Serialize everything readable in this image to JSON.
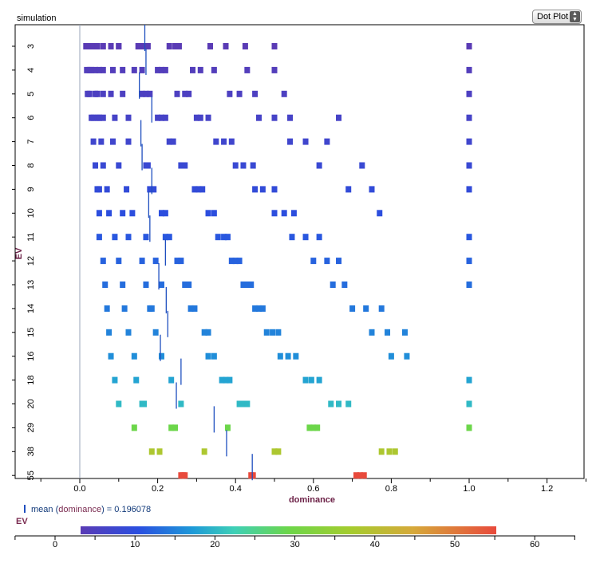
{
  "window": {
    "title": "simulation",
    "plot_type_select": {
      "selected": "Dot Plot"
    }
  },
  "legend": {
    "mean_prefix": "mean (",
    "mean_var": "dominance",
    "mean_suffix": ") = 0.196078",
    "color_label": "EV"
  },
  "colors": {
    "axis_label": "#6b2046",
    "mean_line": "#1f4fbf"
  },
  "chart_data": {
    "type": "scatter",
    "xlabel": "dominance",
    "ylabel": "EV",
    "xlim": [
      -0.1,
      1.3
    ],
    "xticks": [
      -0.1,
      0.0,
      0.1,
      0.2,
      0.3,
      0.4,
      0.5,
      0.6,
      0.7,
      0.8,
      0.9,
      1.0,
      1.1,
      1.2,
      1.3
    ],
    "xtick_labels": [
      "",
      "0.0",
      "",
      "0.2",
      "",
      "0.4",
      "",
      "0.6",
      "",
      "0.8",
      "",
      "1.0",
      "",
      "1.2",
      ""
    ],
    "categories": [
      "3",
      "4",
      "5",
      "6",
      "7",
      "8",
      "9",
      "10",
      "11",
      "12",
      "13",
      "14",
      "15",
      "16",
      "18",
      "20",
      "29",
      "38",
      "55"
    ],
    "category_values": [
      3,
      4,
      5,
      6,
      7,
      8,
      9,
      10,
      11,
      12,
      13,
      14,
      15,
      16,
      18,
      20,
      29,
      38,
      55
    ],
    "overall_mean": 0.196078,
    "colorbar": {
      "label": "EV",
      "range": [
        3,
        55
      ],
      "ticks": [
        0,
        10,
        20,
        30,
        40,
        50,
        60
      ]
    },
    "rows": [
      {
        "ev": "3",
        "mean": 0.167,
        "points": [
          0.016,
          0.02,
          0.025,
          0.035,
          0.045,
          0.06,
          0.08,
          0.1,
          0.1,
          0.15,
          0.155,
          0.16,
          0.165,
          0.175,
          0.23,
          0.245,
          0.255,
          0.335,
          0.375,
          0.425,
          0.5,
          1.0
        ]
      },
      {
        "ev": "4",
        "mean": 0.17,
        "points": [
          0.018,
          0.025,
          0.03,
          0.04,
          0.05,
          0.06,
          0.085,
          0.11,
          0.14,
          0.16,
          0.2,
          0.21,
          0.22,
          0.29,
          0.31,
          0.345,
          0.43,
          0.5,
          1.0
        ]
      },
      {
        "ev": "5",
        "mean": 0.153,
        "points": [
          0.02,
          0.025,
          0.04,
          0.045,
          0.06,
          0.08,
          0.11,
          0.16,
          0.17,
          0.18,
          0.25,
          0.27,
          0.28,
          0.385,
          0.41,
          0.45,
          0.525,
          1.0
        ]
      },
      {
        "ev": "6",
        "mean": 0.185,
        "points": [
          0.03,
          0.035,
          0.045,
          0.05,
          0.06,
          0.09,
          0.125,
          0.2,
          0.21,
          0.22,
          0.3,
          0.31,
          0.33,
          0.46,
          0.5,
          0.54,
          0.665,
          1.0
        ]
      },
      {
        "ev": "7",
        "mean": 0.157,
        "points": [
          0.035,
          0.055,
          0.085,
          0.125,
          0.23,
          0.24,
          0.35,
          0.37,
          0.39,
          0.54,
          0.58,
          0.635,
          1.0
        ]
      },
      {
        "ev": "8",
        "mean": 0.16,
        "points": [
          0.04,
          0.06,
          0.1,
          0.17,
          0.175,
          0.26,
          0.27,
          0.4,
          0.42,
          0.445,
          0.615,
          0.725,
          1.0
        ]
      },
      {
        "ev": "9",
        "mean": 0.185,
        "points": [
          0.045,
          0.05,
          0.07,
          0.12,
          0.18,
          0.19,
          0.295,
          0.305,
          0.315,
          0.45,
          0.47,
          0.5,
          0.69,
          0.75,
          1.0
        ]
      },
      {
        "ev": "10",
        "mean": 0.177,
        "points": [
          0.05,
          0.075,
          0.11,
          0.135,
          0.21,
          0.22,
          0.33,
          0.345,
          0.5,
          0.525,
          0.55,
          0.77
        ]
      },
      {
        "ev": "11",
        "mean": 0.18,
        "points": [
          0.05,
          0.09,
          0.125,
          0.17,
          0.22,
          0.23,
          0.355,
          0.37,
          0.38,
          0.545,
          0.58,
          0.615,
          1.0
        ]
      },
      {
        "ev": "12",
        "mean": 0.22,
        "points": [
          0.06,
          0.1,
          0.16,
          0.195,
          0.25,
          0.26,
          0.39,
          0.4,
          0.41,
          0.6,
          0.635,
          0.665,
          1.0
        ]
      },
      {
        "ev": "13",
        "mean": 0.203,
        "points": [
          0.065,
          0.11,
          0.17,
          0.21,
          0.27,
          0.28,
          0.42,
          0.43,
          0.44,
          0.65,
          0.68,
          1.0
        ]
      },
      {
        "ev": "14",
        "mean": 0.222,
        "points": [
          0.07,
          0.115,
          0.18,
          0.185,
          0.285,
          0.295,
          0.45,
          0.46,
          0.47,
          0.7,
          0.735,
          0.775
        ]
      },
      {
        "ev": "15",
        "mean": 0.226,
        "points": [
          0.075,
          0.125,
          0.195,
          0.32,
          0.33,
          0.48,
          0.495,
          0.51,
          0.75,
          0.79,
          0.835
        ]
      },
      {
        "ev": "16",
        "mean": 0.207,
        "points": [
          0.08,
          0.14,
          0.21,
          0.33,
          0.345,
          0.515,
          0.535,
          0.555,
          0.8,
          0.84
        ]
      },
      {
        "ev": "18",
        "mean": 0.26,
        "points": [
          0.09,
          0.145,
          0.235,
          0.365,
          0.375,
          0.385,
          0.58,
          0.595,
          0.615,
          1.0
        ]
      },
      {
        "ev": "20",
        "mean": 0.248,
        "points": [
          0.1,
          0.16,
          0.165,
          0.26,
          0.41,
          0.42,
          0.43,
          0.645,
          0.665,
          0.69,
          1.0
        ]
      },
      {
        "ev": "29",
        "mean": 0.345,
        "points": [
          0.14,
          0.235,
          0.245,
          0.38,
          0.59,
          0.6,
          0.61,
          1.0
        ]
      },
      {
        "ev": "38",
        "mean": 0.377,
        "points": [
          0.185,
          0.205,
          0.32,
          0.5,
          0.51,
          0.775,
          0.795,
          0.81
        ]
      },
      {
        "ev": "55",
        "mean": 0.443,
        "points": [
          0.26,
          0.265,
          0.27,
          0.44,
          0.445,
          0.71,
          0.72,
          0.73
        ]
      }
    ]
  }
}
